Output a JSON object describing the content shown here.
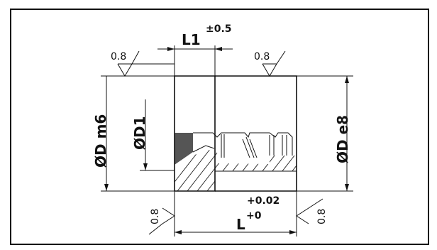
{
  "drawing": {
    "l1_label": "L1",
    "l1_tolerance": "±0.5",
    "surface_finish_top_left": "0.8",
    "surface_finish_top_right": "0.8",
    "surface_finish_bottom_left": "0.8",
    "surface_finish_bottom_right": "0.8",
    "dia_d_label": "ØD  m6",
    "dia_d1_label": "ØD1",
    "dia_d_e8_label": "ØD  e8",
    "l_label": "L",
    "l_upper_tolerance": "+0.02",
    "l_lower_tolerance": "+0"
  },
  "colors": {
    "line": "#111111",
    "fill_dark": "#555555",
    "background": "#ffffff"
  }
}
